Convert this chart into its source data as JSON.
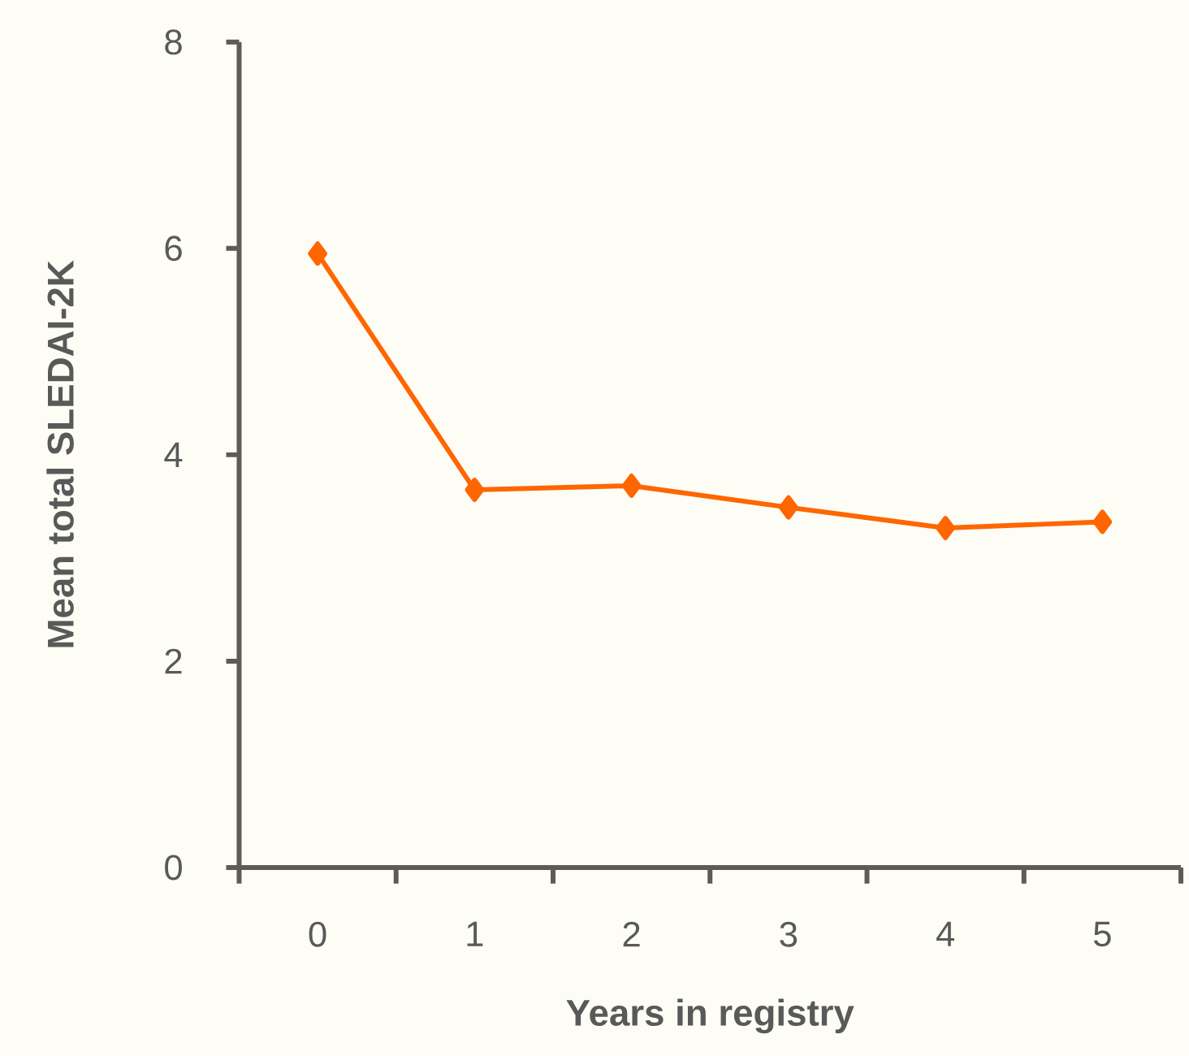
{
  "chart_data": {
    "type": "line",
    "xlabel": "Years in registry",
    "ylabel": "Mean total SLEDAI-2K",
    "categories": [
      "0",
      "1",
      "2",
      "3",
      "4",
      "5"
    ],
    "series": [
      {
        "color": "#ff6600",
        "values": [
          5.95,
          3.66,
          3.7,
          3.49,
          3.29,
          3.35
        ]
      }
    ],
    "ylim": [
      0,
      8
    ],
    "yticks": [
      0,
      2,
      4,
      6,
      8
    ],
    "marker": "diamond",
    "line_style": "solid",
    "grid": false
  }
}
